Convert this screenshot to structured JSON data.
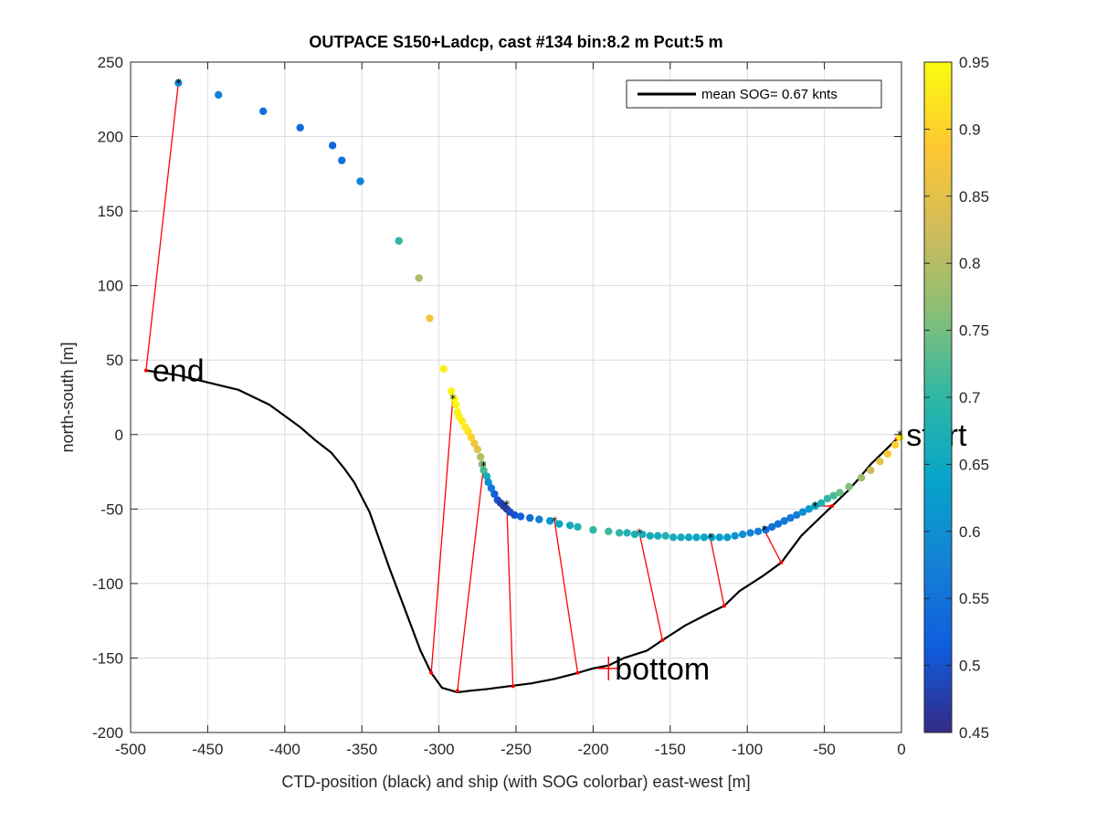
{
  "chart_data": {
    "type": "scatter",
    "title": "OUTPACE S150+Ladcp, cast #134 bin:8.2 m  Pcut:5 m",
    "xlabel": "CTD-position (black) and ship (with SOG colorbar) east-west [m]",
    "ylabel": "north-south [m]",
    "xlim": [
      -500,
      0
    ],
    "ylim": [
      -200,
      250
    ],
    "xticks": [
      "-500",
      "-450",
      "-400",
      "-350",
      "-300",
      "-250",
      "-200",
      "-150",
      "-100",
      "-50",
      "0"
    ],
    "yticks": [
      "-200",
      "-150",
      "-100",
      "-50",
      "0",
      "50",
      "100",
      "150",
      "200",
      "250"
    ],
    "grid": true,
    "legend": {
      "position": "top-right",
      "entries": [
        "mean SOG=  0.67 knts"
      ]
    },
    "colorbar": {
      "lim": [
        0.45,
        0.95
      ],
      "ticks": [
        "0.45",
        "0.5",
        "0.55",
        "0.6",
        "0.65",
        "0.7",
        "0.75",
        "0.8",
        "0.85",
        "0.9",
        "0.95"
      ],
      "colormap": [
        "#352a87",
        "#0f5cdd",
        "#1481d6",
        "#06a4ca",
        "#2eb7a4",
        "#87bf77",
        "#d1bb59",
        "#fec832",
        "#f9fb0e"
      ]
    },
    "series": [
      {
        "name": "CTD-position",
        "kind": "line",
        "color": "#000000",
        "x": [
          0,
          -5,
          -12,
          -20,
          -28,
          -35,
          -45,
          -55,
          -65,
          -78,
          -90,
          -105,
          -115,
          -125,
          -140,
          -155,
          -165,
          -180,
          -190,
          -200,
          -210,
          -225,
          -240,
          -255,
          -270,
          -280,
          -288,
          -298,
          -305,
          -312,
          -320,
          -332,
          -345,
          -355,
          -362,
          -370,
          -380,
          -390,
          -410,
          -430,
          -450,
          -470,
          -490
        ],
        "y": [
          0,
          -5,
          -12,
          -20,
          -30,
          -38,
          -48,
          -58,
          -68,
          -86,
          -95,
          -105,
          -115,
          -120,
          -128,
          -138,
          -145,
          -150,
          -155,
          -157,
          -160,
          -164,
          -167,
          -169,
          -171,
          -172,
          -173,
          -170,
          -160,
          -145,
          -123,
          -90,
          -52,
          -32,
          -22,
          -12,
          -4,
          5,
          20,
          30,
          35,
          40,
          43
        ]
      },
      {
        "name": "ship",
        "kind": "scatter",
        "x": [
          -469,
          -443,
          -414,
          -390,
          -369,
          -363,
          -351,
          -326,
          -313,
          -306,
          -297,
          -292,
          -290,
          -289,
          -288,
          -287,
          -285,
          -283,
          -281,
          -279,
          -277,
          -275,
          -273,
          -272,
          -271,
          -269,
          -268,
          -266,
          -264,
          -262,
          -260,
          -258,
          -256,
          -254,
          -251,
          -247,
          -241,
          -235,
          -228,
          -222,
          -215,
          -210,
          -200,
          -190,
          -183,
          -178,
          -173,
          -168,
          -163,
          -158,
          -153,
          -148,
          -143,
          -138,
          -133,
          -128,
          -123,
          -118,
          -113,
          -108,
          -103,
          -98,
          -93,
          -88,
          -84,
          -80,
          -76,
          -72,
          -68,
          -64,
          -60,
          -56,
          -52,
          -48,
          -44,
          -40,
          -34,
          -26,
          -20,
          -14,
          -9,
          -4,
          -1
        ],
        "y": [
          236,
          228,
          217,
          206,
          194,
          184,
          170,
          130,
          105,
          78,
          44,
          29,
          24,
          20,
          15,
          12,
          9,
          5,
          2,
          -2,
          -6,
          -10,
          -15,
          -20,
          -24,
          -28,
          -32,
          -36,
          -40,
          -44,
          -46,
          -48,
          -50,
          -52,
          -54,
          -55,
          -56,
          -57,
          -58,
          -60,
          -61,
          -62,
          -64,
          -65,
          -66,
          -66,
          -67,
          -67,
          -68,
          -68,
          -68,
          -69,
          -69,
          -69,
          -69,
          -69,
          -69,
          -69,
          -69,
          -68,
          -67,
          -66,
          -65,
          -64,
          -62,
          -60,
          -58,
          -56,
          -54,
          -52,
          -50,
          -48,
          -46,
          -43,
          -41,
          -39,
          -35,
          -29,
          -24,
          -18,
          -13,
          -7,
          -2
        ],
        "sog": [
          0.6,
          0.58,
          0.55,
          0.54,
          0.53,
          0.55,
          0.58,
          0.7,
          0.8,
          0.87,
          0.93,
          0.94,
          0.95,
          0.95,
          0.94,
          0.94,
          0.93,
          0.93,
          0.92,
          0.9,
          0.87,
          0.85,
          0.8,
          0.76,
          0.72,
          0.66,
          0.6,
          0.56,
          0.52,
          0.5,
          0.48,
          0.47,
          0.47,
          0.49,
          0.5,
          0.52,
          0.54,
          0.57,
          0.61,
          0.64,
          0.66,
          0.68,
          0.7,
          0.71,
          0.7,
          0.68,
          0.67,
          0.67,
          0.66,
          0.66,
          0.68,
          0.67,
          0.66,
          0.65,
          0.65,
          0.64,
          0.64,
          0.63,
          0.62,
          0.61,
          0.6,
          0.58,
          0.57,
          0.55,
          0.55,
          0.55,
          0.56,
          0.56,
          0.57,
          0.6,
          0.62,
          0.65,
          0.68,
          0.7,
          0.72,
          0.74,
          0.76,
          0.78,
          0.82,
          0.85,
          0.88,
          0.9,
          0.93
        ]
      },
      {
        "name": "connections",
        "kind": "segments",
        "color": "#ff0000",
        "segments": [
          {
            "ship": [
              -469,
              236
            ],
            "ctd": [
              -490,
              43
            ]
          },
          {
            "ship": [
              -291,
              24
            ],
            "ctd": [
              -305,
              -160
            ]
          },
          {
            "ship": [
              -271,
              -21
            ],
            "ctd": [
              -288,
              -172
            ]
          },
          {
            "ship": [
              -256,
              -47
            ],
            "ctd": [
              -252,
              -169
            ]
          },
          {
            "ship": [
              -225,
              -58
            ],
            "ctd": [
              -210,
              -160
            ]
          },
          {
            "ship": [
              -170,
              -66
            ],
            "ctd": [
              -155,
              -138
            ]
          },
          {
            "ship": [
              -124,
              -69
            ],
            "ctd": [
              -115,
              -115
            ]
          },
          {
            "ship": [
              -89,
              -64
            ],
            "ctd": [
              -78,
              -86
            ]
          },
          {
            "ship": [
              -56,
              -48
            ],
            "ctd": [
              -45,
              -48
            ]
          },
          {
            "ship": [
              -1,
              0
            ],
            "ctd": [
              -3,
              -3
            ]
          }
        ]
      }
    ],
    "annotations": [
      {
        "text": "end",
        "x": -490,
        "y": 43
      },
      {
        "text": "bottom",
        "x": -190,
        "y": -157
      },
      {
        "text": "start",
        "x": -1,
        "y": 0
      }
    ],
    "bottom_marker": {
      "x": -190,
      "y": -157
    }
  }
}
